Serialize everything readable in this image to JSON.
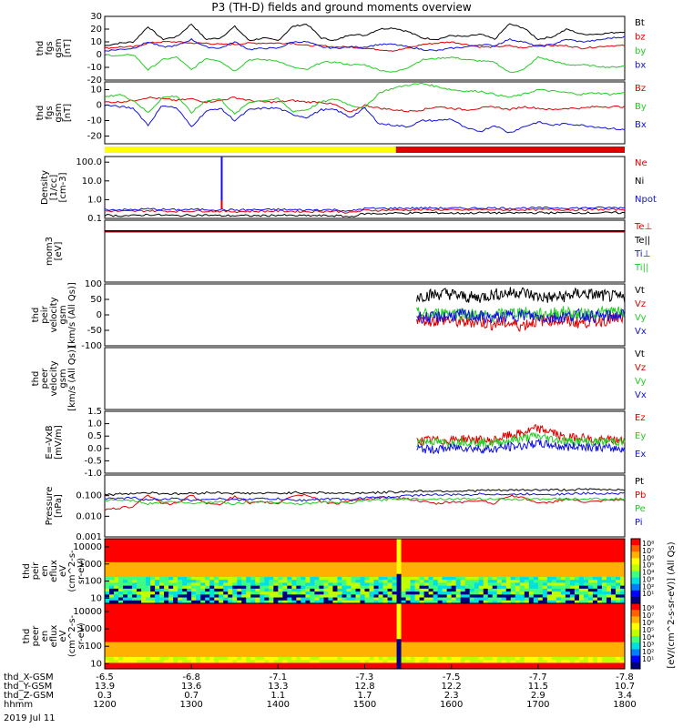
{
  "title": "P3 (TH-D) fields and ground moments overview",
  "colors": {
    "black": "#000000",
    "red": "#e00000",
    "green": "#22cc22",
    "blue": "#1010e0",
    "yellow": "#ffff00"
  },
  "chart_data": [
    {
      "type": "line",
      "panel": "fgs-gsm",
      "ylabel_lines": [
        "thd",
        "fgs",
        "gsm",
        "[nT]"
      ],
      "ylim": [
        -20,
        30
      ],
      "yticks": [
        "30",
        "20",
        "10",
        "0",
        "-10",
        "-20"
      ],
      "series": [
        {
          "name": "Bt",
          "color": "black",
          "values": [
            7,
            9,
            10,
            22,
            12,
            14,
            24,
            12,
            13,
            22,
            11,
            13,
            11,
            22,
            24,
            13,
            11,
            16,
            15,
            20,
            21,
            18,
            13,
            12,
            15,
            14,
            16,
            12,
            24,
            21,
            12,
            14,
            20,
            16,
            16,
            17,
            18
          ]
        },
        {
          "name": "bz",
          "color": "red",
          "values": [
            5,
            6,
            6,
            9,
            10,
            10,
            9,
            9,
            8,
            8,
            9,
            9,
            9,
            9,
            7,
            7,
            6,
            6,
            5,
            4,
            3,
            5,
            8,
            9,
            10,
            8,
            6,
            6,
            7,
            5,
            8,
            7,
            7,
            5,
            6,
            7,
            7
          ]
        },
        {
          "name": "by",
          "color": "green",
          "values": [
            0,
            -1,
            0,
            -12,
            -4,
            -2,
            -12,
            -3,
            -5,
            -13,
            -4,
            -4,
            -5,
            -10,
            -12,
            -6,
            -6,
            -8,
            -8,
            -12,
            -14,
            -10,
            -4,
            -3,
            -2,
            -4,
            -5,
            -6,
            -14,
            -12,
            -2,
            -5,
            -8,
            -8,
            -9,
            -10,
            -9
          ]
        },
        {
          "name": "bx",
          "color": "blue",
          "values": [
            3,
            4,
            5,
            10,
            6,
            7,
            12,
            6,
            5,
            10,
            4,
            5,
            5,
            10,
            10,
            6,
            5,
            6,
            6,
            8,
            8,
            6,
            4,
            3,
            5,
            6,
            8,
            7,
            12,
            10,
            6,
            8,
            12,
            10,
            11,
            13,
            14
          ]
        }
      ]
    },
    {
      "type": "line",
      "panel": "fgs-gsm-2",
      "ylabel_lines": [
        "thd",
        "fgs",
        "gsm",
        "[nT]"
      ],
      "ylim": [
        -25,
        15
      ],
      "yticks": [
        "10",
        "0",
        "-10",
        "-20"
      ],
      "series": [
        {
          "name": "Bz",
          "color": "red",
          "values": [
            2,
            2,
            3,
            5,
            4,
            3,
            4,
            2,
            3,
            5,
            3,
            2,
            2,
            3,
            2,
            2,
            0,
            -5,
            0,
            -2,
            -3,
            -4,
            -3,
            -1,
            -2,
            -3,
            -2,
            -1,
            -3,
            -1,
            -2,
            -3,
            -2,
            -2,
            -1,
            -1,
            -1
          ]
        },
        {
          "name": "By",
          "color": "green",
          "values": [
            5,
            7,
            3,
            -5,
            5,
            6,
            -5,
            3,
            4,
            -6,
            2,
            3,
            4,
            -4,
            -3,
            2,
            4,
            0,
            -2,
            8,
            11,
            13,
            14,
            12,
            10,
            9,
            9,
            7,
            5,
            7,
            10,
            9,
            8,
            7,
            8,
            7,
            8
          ]
        },
        {
          "name": "Bx",
          "color": "blue",
          "values": [
            0,
            -1,
            -2,
            -13,
            0,
            -2,
            -14,
            -4,
            -2,
            -10,
            -3,
            -2,
            -2,
            -6,
            -8,
            -3,
            -3,
            -8,
            -2,
            -12,
            -13,
            -14,
            -10,
            -10,
            -9,
            -15,
            -17,
            -13,
            -18,
            -14,
            -11,
            -13,
            -12,
            -13,
            -14,
            -15,
            -16
          ]
        }
      ]
    },
    {
      "type": "line",
      "panel": "density",
      "ylabel_lines": [
        "Density",
        "[1/cc]",
        "[cm-3]"
      ],
      "ylim": [
        0.1,
        200
      ],
      "yscale": "log",
      "yticks": [
        "100.0",
        "10.0",
        "1.0",
        "0.1"
      ],
      "series": [
        {
          "name": "Ne",
          "color": "red",
          "values": [
            0.25,
            0.24,
            0.24,
            0.26,
            0.25,
            0.24,
            0.25,
            0.25,
            0.24,
            0.23,
            0.24,
            0.24,
            0.25,
            0.24,
            0.23,
            0.24,
            0.24,
            0.2,
            0.27,
            0.27,
            0.28,
            0.28,
            0.29,
            0.29,
            0.28,
            0.28,
            0.3,
            0.29,
            0.28,
            0.29,
            0.29,
            0.3,
            0.29,
            0.29,
            0.3,
            0.3,
            0.3
          ]
        },
        {
          "name": "Ni",
          "color": "black",
          "values": [
            0.15,
            0.14,
            0.14,
            0.16,
            0.15,
            0.14,
            0.15,
            0.15,
            0.14,
            0.14,
            0.14,
            0.14,
            0.15,
            0.14,
            0.14,
            0.14,
            0.14,
            0.12,
            0.18,
            0.18,
            0.19,
            0.19,
            0.2,
            0.2,
            0.19,
            0.19,
            0.2,
            0.2,
            0.19,
            0.2,
            0.2,
            0.2,
            0.2,
            0.2,
            0.2,
            0.2,
            0.2
          ]
        },
        {
          "name": "Npot",
          "color": "blue",
          "values": [
            0.3,
            0.29,
            0.29,
            0.32,
            0.3,
            0.29,
            0.3,
            0.3,
            0.29,
            0.28,
            0.29,
            0.29,
            0.3,
            0.29,
            0.28,
            0.29,
            0.29,
            0.24,
            0.34,
            0.34,
            0.35,
            0.35,
            0.36,
            0.36,
            0.35,
            0.35,
            0.36,
            0.36,
            0.35,
            0.36,
            0.36,
            0.37,
            0.36,
            0.36,
            0.37,
            0.37,
            0.37
          ]
        }
      ],
      "annotation": "spike to ~200 near 1320"
    },
    {
      "type": "line",
      "panel": "temperature",
      "ylabel_lines": [
        "mom3",
        "[eV]"
      ],
      "ylim": [
        0.1,
        1000
      ],
      "yscale": "log",
      "series": [
        {
          "name": "Te⊥",
          "color": "red"
        },
        {
          "name": "Te||",
          "color": "black"
        },
        {
          "name": "Ti⊥",
          "color": "blue"
        },
        {
          "name": "Ti||",
          "color": "green"
        }
      ]
    },
    {
      "type": "line",
      "panel": "peir-velocity",
      "ylabel_lines": [
        "thd",
        "peir",
        "velocity",
        "gsm",
        "[km/s (All Qs)]"
      ],
      "ylim": [
        -100,
        100
      ],
      "yticks": [
        "100",
        "50",
        "0",
        "-50",
        "-100"
      ],
      "series": [
        {
          "name": "Vt",
          "color": "black",
          "values": [
            60,
            65,
            70,
            60,
            55,
            65,
            70,
            75,
            60,
            55,
            60,
            70,
            65,
            60,
            55
          ]
        },
        {
          "name": "Vz",
          "color": "red",
          "values": [
            -10,
            -20,
            -15,
            -25,
            -20,
            -30,
            -25,
            -35,
            -20,
            -15,
            -20,
            -25,
            -20,
            -15,
            -10
          ]
        },
        {
          "name": "Vy",
          "color": "green",
          "values": [
            5,
            0,
            10,
            5,
            0,
            -5,
            5,
            10,
            0,
            5,
            10,
            0,
            5,
            10,
            5
          ]
        },
        {
          "name": "Vx",
          "color": "blue",
          "values": [
            -5,
            -10,
            -5,
            0,
            -5,
            -10,
            -5,
            0,
            -5,
            -10,
            -5,
            0,
            -5,
            -5,
            0
          ]
        }
      ]
    },
    {
      "type": "line",
      "panel": "peer-velocity",
      "ylabel_lines": [
        "thd",
        "peer",
        "velocity",
        "gsm",
        "[km/s (All Qs)]"
      ],
      "series": [
        {
          "name": "Vt",
          "color": "black"
        },
        {
          "name": "Vz",
          "color": "red"
        },
        {
          "name": "Vy",
          "color": "green"
        },
        {
          "name": "Vx",
          "color": "blue"
        }
      ]
    },
    {
      "type": "line",
      "panel": "efield",
      "ylabel_lines": [
        "E=-VxB",
        "[mV/m]"
      ],
      "ylim": [
        -1.0,
        1.5
      ],
      "yticks": [
        "1.5",
        "1.0",
        "0.5",
        "0.0",
        "-0.5",
        "-1.0"
      ],
      "series": [
        {
          "name": "Ez",
          "color": "red",
          "values": [
            0.3,
            0.35,
            0.3,
            0.4,
            0.35,
            0.3,
            0.5,
            0.6,
            0.8,
            0.7,
            0.4,
            0.5,
            0.3,
            0.35,
            0.3
          ]
        },
        {
          "name": "Ey",
          "color": "green",
          "values": [
            0.25,
            0.3,
            0.2,
            0.3,
            0.25,
            0.2,
            0.3,
            0.4,
            0.5,
            0.4,
            0.3,
            0.3,
            0.25,
            0.3,
            0.25
          ]
        },
        {
          "name": "Ex",
          "color": "blue",
          "values": [
            0.0,
            -0.05,
            0.0,
            0.05,
            0.0,
            -0.05,
            0.05,
            0.1,
            0.2,
            0.15,
            0.05,
            0.1,
            0.05,
            0.0,
            0.0
          ]
        }
      ]
    },
    {
      "type": "line",
      "panel": "pressure",
      "ylabel_lines": [
        "Pressure",
        "[nPa]"
      ],
      "ylim": [
        0.001,
        1
      ],
      "yscale": "log",
      "yticks": [
        "0.100",
        "0.010",
        "0.001"
      ],
      "series": [
        {
          "name": "Pt",
          "color": "black",
          "values": [
            0.11,
            0.12,
            0.13,
            0.14,
            0.13,
            0.12,
            0.13,
            0.14,
            0.14,
            0.13,
            0.13,
            0.13,
            0.13,
            0.14,
            0.14,
            0.14,
            0.13,
            0.13,
            0.14,
            0.14,
            0.15,
            0.16,
            0.17,
            0.17,
            0.17,
            0.17,
            0.18,
            0.18,
            0.18,
            0.19,
            0.19,
            0.19,
            0.19,
            0.2,
            0.2,
            0.2,
            0.2
          ]
        },
        {
          "name": "Pb",
          "color": "red",
          "values": [
            0.02,
            0.025,
            0.03,
            0.1,
            0.04,
            0.04,
            0.1,
            0.04,
            0.04,
            0.09,
            0.04,
            0.05,
            0.04,
            0.1,
            0.11,
            0.05,
            0.04,
            0.06,
            0.06,
            0.08,
            0.08,
            0.07,
            0.05,
            0.04,
            0.05,
            0.05,
            0.06,
            0.04,
            0.1,
            0.08,
            0.04,
            0.05,
            0.07,
            0.05,
            0.05,
            0.06,
            0.06
          ]
        },
        {
          "name": "Pe",
          "color": "green",
          "values": [
            0.06,
            0.06,
            0.06,
            0.04,
            0.05,
            0.05,
            0.04,
            0.05,
            0.05,
            0.04,
            0.05,
            0.05,
            0.05,
            0.04,
            0.04,
            0.05,
            0.05,
            0.04,
            0.06,
            0.06,
            0.07,
            0.07,
            0.07,
            0.07,
            0.07,
            0.07,
            0.07,
            0.07,
            0.06,
            0.07,
            0.07,
            0.07,
            0.07,
            0.07,
            0.07,
            0.07,
            0.07
          ]
        },
        {
          "name": "Pi",
          "color": "blue",
          "values": [
            0.07,
            0.07,
            0.08,
            0.06,
            0.07,
            0.07,
            0.06,
            0.07,
            0.07,
            0.06,
            0.07,
            0.07,
            0.07,
            0.06,
            0.06,
            0.07,
            0.07,
            0.06,
            0.08,
            0.08,
            0.09,
            0.1,
            0.11,
            0.11,
            0.11,
            0.11,
            0.12,
            0.12,
            0.11,
            0.12,
            0.12,
            0.12,
            0.12,
            0.13,
            0.13,
            0.13,
            0.13
          ]
        }
      ]
    },
    {
      "type": "heatmap",
      "panel": "peir-spectrogram",
      "ylabel_lines": [
        "thd",
        "peir",
        "en",
        "eflux",
        "eV",
        "(cm^2-s-",
        "sr-eV)"
      ],
      "yscale": "log",
      "ylim": [
        5,
        30000
      ],
      "yticks": [
        "10000",
        "1000",
        "100",
        "10"
      ],
      "colorbar_ticks": [
        "10⁸",
        "10⁷",
        "10⁶",
        "10⁵",
        "10⁴",
        "10³",
        "10²",
        "10¹"
      ]
    },
    {
      "type": "heatmap",
      "panel": "peer-spectrogram",
      "ylabel_lines": [
        "thd",
        "peer",
        "en",
        "eflux",
        "eV",
        "(cm^2-s-",
        "sr-eV)"
      ],
      "yscale": "log",
      "ylim": [
        5,
        30000
      ],
      "yticks": [
        "10000",
        "1000",
        "100",
        "10"
      ],
      "colorbar_ticks": [
        "10⁸",
        "10⁷",
        "10⁶",
        "10⁵",
        "10⁴",
        "10³",
        "10²",
        "10¹"
      ]
    }
  ],
  "colorbar_label": "[eV/(cm^2-s-sr-eV)] (All Qs)",
  "ephemeris": {
    "rows": [
      {
        "label": "thd_X-GSM",
        "values": [
          "-6.5",
          "-6.8",
          "-7.1",
          "-7.3",
          "-7.5",
          "-7.7",
          "-7.8"
        ]
      },
      {
        "label": "thd_Y-GSM",
        "values": [
          "13.9",
          "13.6",
          "13.3",
          "12.8",
          "12.2",
          "11.5",
          "10.7"
        ]
      },
      {
        "label": "thd_Z-GSM",
        "values": [
          "0.3",
          "0.7",
          "1.1",
          "1.7",
          "2.3",
          "2.9",
          "3.4"
        ]
      },
      {
        "label": "hhmm",
        "values": [
          "1200",
          "1300",
          "1400",
          "1500",
          "1600",
          "1700",
          "1800"
        ]
      }
    ],
    "date": "2019 Jul 11"
  },
  "mode_bar": {
    "yellow_until_fraction": 0.56
  }
}
